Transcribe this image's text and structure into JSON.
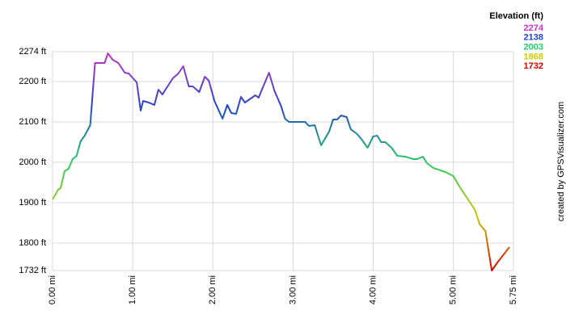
{
  "chart_data": {
    "type": "line",
    "legend_title": "Elevation (ft)",
    "credit": "created by GPSVisualizer.com",
    "color_scale": [
      {
        "value": 2274,
        "color": "#cc33cc"
      },
      {
        "value": 2138,
        "color": "#2244cc"
      },
      {
        "value": 2003,
        "color": "#22cc66"
      },
      {
        "value": 1868,
        "color": "#cccc00"
      },
      {
        "value": 1732,
        "color": "#dd0000"
      }
    ],
    "x": [
      0,
      0.07,
      0.1,
      0.15,
      0.2,
      0.25,
      0.3,
      0.35,
      0.4,
      0.47,
      0.53,
      0.65,
      0.69,
      0.75,
      0.82,
      0.9,
      0.95,
      1.05,
      1.1,
      1.13,
      1.2,
      1.27,
      1.32,
      1.37,
      1.5,
      1.57,
      1.63,
      1.7,
      1.75,
      1.83,
      1.9,
      1.95,
      2.02,
      2.12,
      2.18,
      2.23,
      2.29,
      2.35,
      2.4,
      2.53,
      2.57,
      2.7,
      2.77,
      2.85,
      2.9,
      2.95,
      3.15,
      3.2,
      3.27,
      3.35,
      3.45,
      3.5,
      3.55,
      3.6,
      3.67,
      3.72,
      3.8,
      3.85,
      3.93,
      4.0,
      4.05,
      4.1,
      4.15,
      4.23,
      4.3,
      4.4,
      4.5,
      4.55,
      4.62,
      4.67,
      4.75,
      4.9,
      5.0,
      5.07,
      5.17,
      5.27,
      5.33,
      5.4,
      5.48,
      5.55,
      5.7
    ],
    "values": [
      1908,
      1932,
      1936,
      1978,
      1984,
      2008,
      2016,
      2052,
      2066,
      2092,
      2246,
      2246,
      2270,
      2254,
      2246,
      2222,
      2220,
      2198,
      2128,
      2152,
      2148,
      2142,
      2180,
      2168,
      2208,
      2220,
      2238,
      2188,
      2188,
      2174,
      2212,
      2202,
      2152,
      2108,
      2142,
      2122,
      2120,
      2162,
      2148,
      2166,
      2160,
      2222,
      2176,
      2140,
      2108,
      2100,
      2100,
      2090,
      2092,
      2042,
      2076,
      2106,
      2106,
      2116,
      2112,
      2082,
      2070,
      2058,
      2036,
      2064,
      2066,
      2050,
      2050,
      2036,
      2016,
      2014,
      2008,
      2008,
      2014,
      1998,
      1986,
      1976,
      1966,
      1942,
      1912,
      1882,
      1846,
      1830,
      1732,
      1752,
      1790
    ],
    "xlim": [
      0,
      5.75
    ],
    "ylim": [
      1732,
      2274
    ],
    "xticks": [
      {
        "value": 0,
        "label": "0.00 mi"
      },
      {
        "value": 1,
        "label": "1.00 mi"
      },
      {
        "value": 2,
        "label": "2.00 mi"
      },
      {
        "value": 3,
        "label": "3.00 mi"
      },
      {
        "value": 4,
        "label": "4.00 mi"
      },
      {
        "value": 5,
        "label": "5.00 mi"
      },
      {
        "value": 5.75,
        "label": "5.75 mi"
      }
    ],
    "yticks": [
      {
        "value": 1732,
        "label": "1732 ft"
      },
      {
        "value": 1800,
        "label": "1800 ft"
      },
      {
        "value": 1900,
        "label": "1900 ft"
      },
      {
        "value": 2000,
        "label": "2000 ft"
      },
      {
        "value": 2100,
        "label": "2100 ft"
      },
      {
        "value": 2200,
        "label": "2200 ft"
      },
      {
        "value": 2274,
        "label": "2274 ft"
      }
    ],
    "grid": true
  }
}
